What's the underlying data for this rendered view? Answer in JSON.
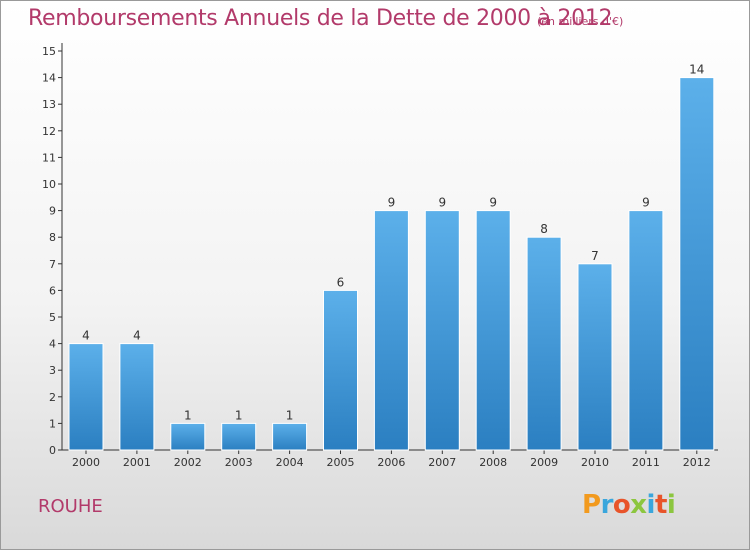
{
  "header": {
    "title": "Remboursements Annuels de la Dette de 2000 à 2012",
    "unit": "(en milliers d'€)"
  },
  "town": "ROUHE",
  "brand": {
    "name": "Proxiti",
    "letter_colors": [
      "#f29a1e",
      "#3aa6dc",
      "#e8542a",
      "#8cc63f",
      "#3aa6dc",
      "#e8542a",
      "#8cc63f"
    ]
  },
  "colors": {
    "bar_top": "#5cb0ea",
    "bar_bottom": "#2b7fc1",
    "accent": "#b23a6a"
  },
  "chart_data": {
    "type": "bar",
    "title": "Remboursements Annuels de la Dette de 2000 à 2012",
    "subtitle": "(en milliers d'€)",
    "categories": [
      "2000",
      "2001",
      "2002",
      "2003",
      "2004",
      "2005",
      "2006",
      "2007",
      "2008",
      "2009",
      "2010",
      "2011",
      "2012"
    ],
    "values": [
      4,
      4,
      1,
      1,
      1,
      6,
      9,
      9,
      9,
      8,
      7,
      9,
      14
    ],
    "data_labels": [
      "4",
      "4",
      "1",
      "1",
      "1",
      "6",
      "9",
      "9",
      "9",
      "8",
      "7",
      "9",
      "14"
    ],
    "y_ticks": [
      "0",
      "1",
      "2",
      "3",
      "4",
      "5",
      "6",
      "7",
      "8",
      "9",
      "10",
      "11",
      "12",
      "13",
      "14",
      "15"
    ],
    "ylim": [
      0,
      15
    ],
    "grid": false,
    "legend": "none"
  }
}
